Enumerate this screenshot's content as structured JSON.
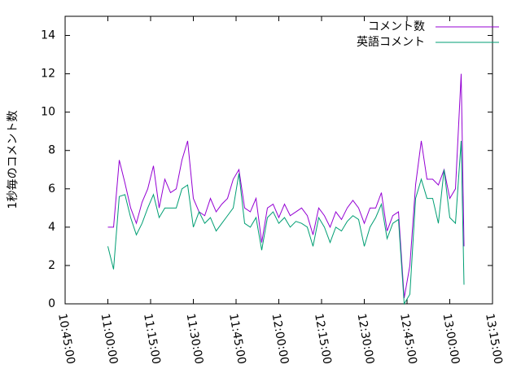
{
  "chart_data": {
    "type": "line",
    "ylabel": "1秒毎のコメント数",
    "x": [
      "11:00:00",
      "11:02:00",
      "11:04:00",
      "11:06:00",
      "11:08:00",
      "11:10:00",
      "11:12:00",
      "11:14:00",
      "11:16:00",
      "11:18:00",
      "11:20:00",
      "11:22:00",
      "11:24:00",
      "11:26:00",
      "11:28:00",
      "11:30:00",
      "11:32:00",
      "11:34:00",
      "11:36:00",
      "11:38:00",
      "11:40:00",
      "11:42:00",
      "11:44:00",
      "11:46:00",
      "11:48:00",
      "11:50:00",
      "11:52:00",
      "11:54:00",
      "11:56:00",
      "11:58:00",
      "12:00:00",
      "12:02:00",
      "12:04:00",
      "12:06:00",
      "12:08:00",
      "12:10:00",
      "12:12:00",
      "12:14:00",
      "12:16:00",
      "12:18:00",
      "12:20:00",
      "12:22:00",
      "12:24:00",
      "12:26:00",
      "12:28:00",
      "12:30:00",
      "12:32:00",
      "12:34:00",
      "12:36:00",
      "12:38:00",
      "12:40:00",
      "12:42:00",
      "12:44:00",
      "12:46:00",
      "12:48:00",
      "12:50:00",
      "12:52:00",
      "12:54:00",
      "12:56:00",
      "12:58:00",
      "13:00:00",
      "13:02:00",
      "13:04:00",
      "13:05:00"
    ],
    "series": [
      {
        "name": "コメント数",
        "color": "#9400d3",
        "values": [
          4.0,
          4.0,
          7.5,
          6.3,
          5.0,
          4.2,
          5.3,
          6.0,
          7.2,
          5.0,
          6.5,
          5.8,
          6.0,
          7.5,
          8.5,
          5.5,
          4.8,
          4.6,
          5.5,
          4.8,
          5.2,
          5.5,
          6.5,
          7.0,
          5.0,
          4.8,
          5.5,
          3.2,
          5.0,
          5.2,
          4.5,
          5.2,
          4.6,
          4.8,
          5.0,
          4.6,
          3.6,
          5.0,
          4.6,
          4.0,
          4.8,
          4.4,
          5.0,
          5.4,
          5.0,
          4.2,
          5.0,
          5.0,
          5.8,
          3.8,
          4.6,
          4.8,
          0.3,
          2.0,
          6.2,
          8.5,
          6.5,
          6.5,
          6.2,
          7.0,
          5.5,
          6.0,
          12.0,
          3.0
        ]
      },
      {
        "name": "英語コメント",
        "color": "#009e73",
        "values": [
          3.0,
          1.8,
          5.6,
          5.7,
          4.5,
          3.6,
          4.2,
          5.0,
          5.7,
          4.5,
          5.0,
          5.0,
          5.0,
          6.0,
          6.2,
          4.0,
          4.8,
          4.2,
          4.5,
          3.8,
          4.2,
          4.6,
          5.0,
          6.8,
          4.2,
          4.0,
          4.5,
          2.8,
          4.5,
          4.8,
          4.2,
          4.5,
          4.0,
          4.3,
          4.2,
          4.0,
          3.0,
          4.5,
          4.0,
          3.2,
          4.0,
          3.8,
          4.3,
          4.6,
          4.4,
          3.0,
          4.0,
          4.5,
          5.2,
          3.4,
          4.2,
          4.4,
          0.0,
          0.5,
          5.5,
          6.5,
          5.5,
          5.5,
          4.2,
          7.0,
          4.5,
          4.2,
          8.5,
          1.0
        ]
      }
    ],
    "xlim": [
      "10:45:00",
      "13:15:00"
    ],
    "xticks": [
      "10:45:00",
      "11:00:00",
      "11:15:00",
      "11:30:00",
      "11:45:00",
      "12:00:00",
      "12:15:00",
      "12:30:00",
      "12:45:00",
      "13:00:00",
      "13:15:00"
    ],
    "ylim": [
      0,
      15
    ],
    "yticks": [
      0,
      2,
      4,
      6,
      8,
      10,
      12,
      14
    ],
    "legend": "top-right"
  }
}
